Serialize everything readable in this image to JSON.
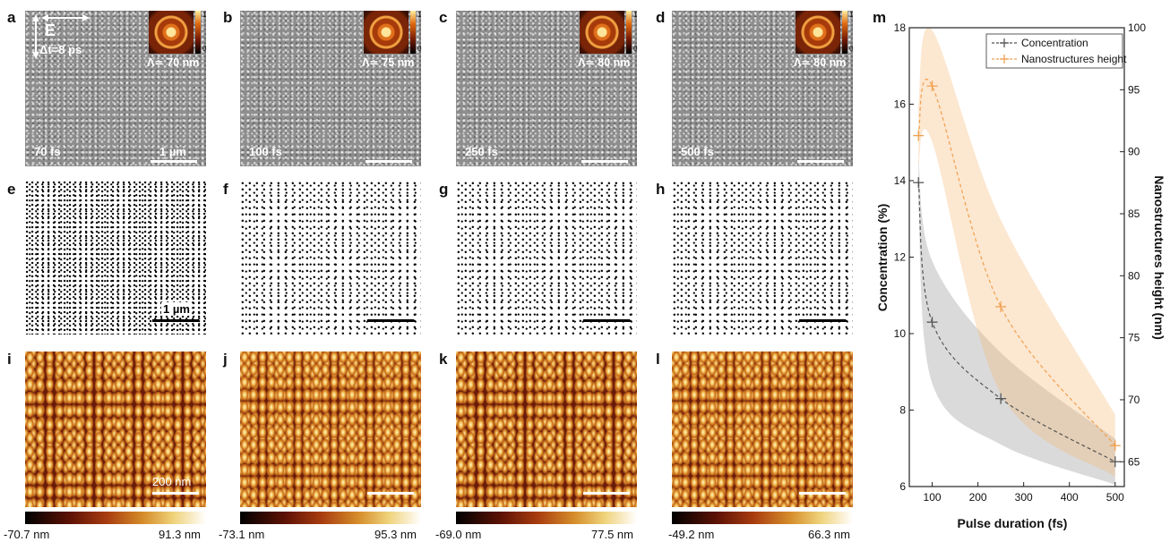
{
  "panels": {
    "a": "a",
    "b": "b",
    "c": "c",
    "d": "d",
    "e": "e",
    "f": "f",
    "g": "g",
    "h": "h",
    "i": "i",
    "j": "j",
    "k": "k",
    "l": "l",
    "m": "m"
  },
  "sem": {
    "field_label": "E",
    "delay_label": "Δt=8 ps",
    "scale_label": "1 µm",
    "images": [
      {
        "pulse": "70 fs",
        "period": "Λ≃ 70 nm"
      },
      {
        "pulse": "100 fs",
        "period": "Λ≃ 75 nm"
      },
      {
        "pulse": "250 fs",
        "period": "Λ≃ 80 nm"
      },
      {
        "pulse": "500 fs",
        "period": "Λ≃ 80 nm"
      }
    ],
    "fft_colorbar_max": "1",
    "fft_colorbar_min": "0"
  },
  "binary": {
    "scale_label": "1 µm"
  },
  "afm": {
    "scale_label": "200 nm",
    "colorbars": [
      {
        "min": "-70.7 nm",
        "max": "91.3 nm"
      },
      {
        "min": "-73.1 nm",
        "max": "95.3 nm"
      },
      {
        "min": "-69.0 nm",
        "max": "77.5 nm"
      },
      {
        "min": "-49.2 nm",
        "max": "66.3 nm"
      }
    ]
  },
  "chart_data": {
    "type": "line",
    "xlabel": "Pulse duration (fs)",
    "ylabel": "Concentration (%)",
    "y2label": "Nanostructures height (nm)",
    "xlim": [
      50,
      520
    ],
    "ylim": [
      6,
      18
    ],
    "y2lim": [
      63,
      100
    ],
    "xticks": [
      100,
      200,
      300,
      400,
      500
    ],
    "yticks": [
      6,
      8,
      10,
      12,
      14,
      16,
      18
    ],
    "y2ticks": [
      65,
      70,
      75,
      80,
      85,
      90,
      95,
      100
    ],
    "legend_position": "top-right",
    "series": [
      {
        "name": "Concentration",
        "axis": "left",
        "color": "#555555",
        "x": [
          70,
          100,
          250,
          500
        ],
        "y": [
          13.95,
          10.3,
          8.3,
          6.65
        ]
      },
      {
        "name": "Nanostructures height",
        "axis": "right",
        "color": "#f0a050",
        "x": [
          70,
          100,
          250,
          500
        ],
        "y": [
          91.3,
          95.3,
          77.5,
          66.3
        ]
      }
    ]
  }
}
